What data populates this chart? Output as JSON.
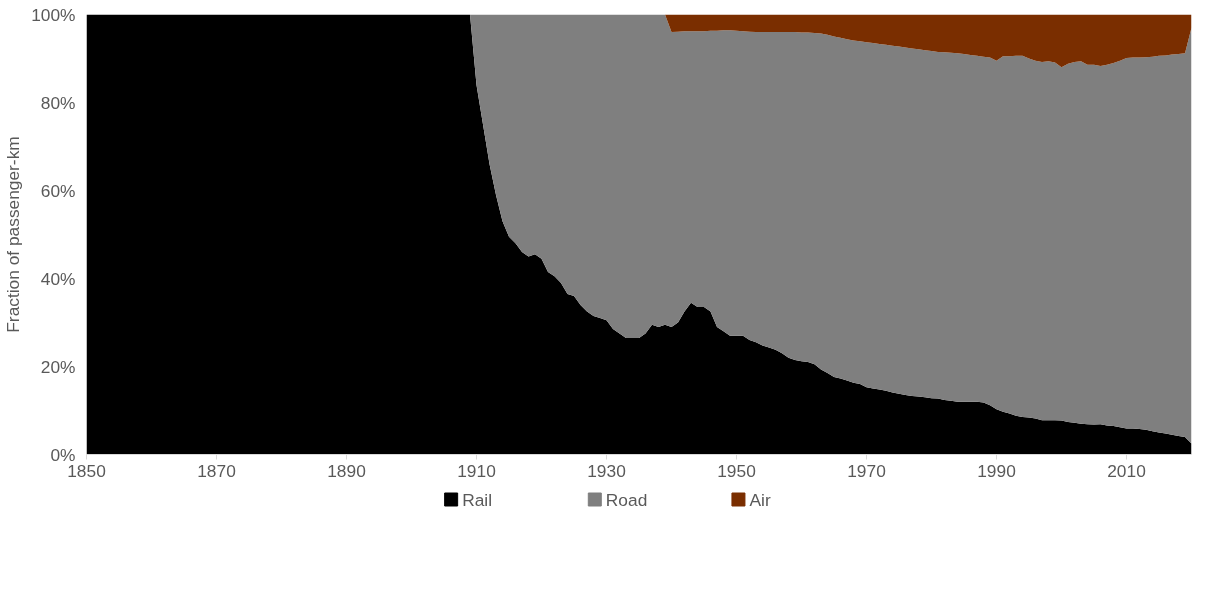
{
  "chart_data": {
    "type": "area",
    "stacked": true,
    "ylabel": "Fraction of passenger-km",
    "x": [
      1850,
      1909,
      1910,
      1911,
      1912,
      1913,
      1914,
      1915,
      1916,
      1917,
      1918,
      1919,
      1920,
      1921,
      1922,
      1923,
      1924,
      1925,
      1926,
      1927,
      1928,
      1929,
      1930,
      1931,
      1932,
      1933,
      1934,
      1935,
      1936,
      1937,
      1938,
      1939,
      1940,
      1941,
      1942,
      1943,
      1944,
      1945,
      1946,
      1947,
      1948,
      1949,
      1950,
      1951,
      1952,
      1953,
      1954,
      1955,
      1956,
      1957,
      1958,
      1959,
      1960,
      1961,
      1962,
      1963,
      1964,
      1965,
      1966,
      1967,
      1968,
      1969,
      1970,
      1971,
      1972,
      1973,
      1974,
      1975,
      1976,
      1977,
      1978,
      1979,
      1980,
      1981,
      1982,
      1983,
      1984,
      1985,
      1986,
      1987,
      1988,
      1989,
      1990,
      1991,
      1992,
      1993,
      1994,
      1995,
      1996,
      1997,
      1998,
      1999,
      2000,
      2001,
      2002,
      2003,
      2004,
      2005,
      2006,
      2007,
      2008,
      2009,
      2010,
      2011,
      2012,
      2013,
      2014,
      2015,
      2016,
      2017,
      2018,
      2019,
      2020
    ],
    "series": [
      {
        "name": "Rail",
        "color": "#000000",
        "values": [
          100,
          100,
          84,
          75,
          66,
          59,
          53,
          49.5,
          48,
          46,
          45,
          45.5,
          44.5,
          41.5,
          40.5,
          39,
          36.5,
          36,
          34,
          32.5,
          31.5,
          31,
          30.5,
          28.5,
          27.5,
          26.5,
          26.5,
          26.5,
          27.5,
          29.5,
          29,
          29.5,
          29,
          30,
          32.5,
          34.5,
          33.5,
          33.5,
          32.5,
          29,
          28,
          27,
          27,
          27,
          26,
          25.5,
          24.8,
          24.3,
          23.8,
          23,
          22,
          21.5,
          21.2,
          21,
          20.5,
          19.3,
          18.5,
          17.6,
          17.3,
          16.8,
          16.3,
          16,
          15.3,
          15,
          14.8,
          14.5,
          14.1,
          13.8,
          13.5,
          13.3,
          13.2,
          13,
          12.8,
          12.7,
          12.4,
          12.2,
          12,
          12,
          12,
          12,
          11.8,
          11.2,
          10.3,
          9.7,
          9.3,
          8.8,
          8.5,
          8.4,
          8.2,
          7.8,
          7.8,
          7.8,
          7.7,
          7.4,
          7.2,
          7.0,
          6.9,
          6.8,
          6.9,
          6.6,
          6.5,
          6.2,
          5.9,
          5.9,
          5.8,
          5.6,
          5.3,
          5,
          4.8,
          4.5,
          4.2,
          4,
          2.5
        ]
      },
      {
        "name": "Road",
        "color": "#7f7f7f",
        "values": [
          0,
          0,
          16,
          25,
          34,
          41,
          47,
          50.5,
          52,
          54,
          55,
          54.5,
          55.5,
          58.5,
          59.5,
          61,
          63.5,
          64,
          66,
          67.5,
          68.5,
          69,
          69.5,
          71.5,
          72.5,
          73.5,
          73.5,
          73.5,
          72.5,
          70.5,
          71,
          70.5,
          67,
          66.1,
          63.7,
          61.7,
          62.7,
          62.7,
          63.8,
          67.3,
          68.4,
          69.4,
          69.3,
          69.2,
          70.1,
          70.5,
          71.2,
          71.7,
          72.2,
          73,
          74,
          74.5,
          74.7,
          74.9,
          75.3,
          76.4,
          76.9,
          77.4,
          77.4,
          77.6,
          77.8,
          77.9,
          78.4,
          78.5,
          78.5,
          78.6,
          78.8,
          78.9,
          79,
          79,
          78.9,
          78.9,
          78.9,
          78.8,
          79,
          79.1,
          79.2,
          79,
          78.8,
          78.6,
          78.6,
          79,
          79.2,
          80.8,
          81.2,
          81.8,
          82.1,
          81.6,
          81.3,
          81.4,
          81.6,
          81.3,
          80.3,
          81.4,
          82,
          82.4,
          81.7,
          81.8,
          81.4,
          82,
          82.5,
          83.3,
          84.2,
          84.3,
          84.4,
          84.7,
          85.1,
          85.6,
          85.9,
          86.4,
          86.8,
          87.2,
          94.5
        ]
      },
      {
        "name": "Air",
        "color": "#7a2e00",
        "values": [
          0,
          0,
          0,
          0,
          0,
          0,
          0,
          0,
          0,
          0,
          0,
          0,
          0,
          0,
          0,
          0,
          0,
          0,
          0,
          0,
          0,
          0,
          0,
          0,
          0,
          0,
          0,
          0,
          0,
          0,
          0,
          0,
          4,
          3.9,
          3.8,
          3.8,
          3.8,
          3.8,
          3.7,
          3.7,
          3.6,
          3.6,
          3.7,
          3.8,
          3.9,
          4,
          4,
          4,
          4,
          4,
          4,
          4,
          4.1,
          4.1,
          4.2,
          4.3,
          4.6,
          5,
          5.3,
          5.6,
          5.9,
          6.1,
          6.3,
          6.5,
          6.7,
          6.9,
          7.1,
          7.3,
          7.5,
          7.7,
          7.9,
          8.1,
          8.3,
          8.5,
          8.6,
          8.7,
          8.8,
          9,
          9.2,
          9.4,
          9.6,
          9.8,
          10.5,
          9.5,
          9.5,
          9.4,
          9.4,
          10,
          10.5,
          10.8,
          10.6,
          10.9,
          12,
          11.2,
          10.8,
          10.6,
          11.4,
          11.4,
          11.7,
          11.4,
          11,
          10.5,
          9.9,
          9.8,
          9.8,
          9.7,
          9.6,
          9.4,
          9.3,
          9.1,
          9,
          8.8,
          3
        ]
      }
    ],
    "xlim": [
      1850,
      2020
    ],
    "xticks": [
      1850,
      1870,
      1890,
      1910,
      1930,
      1950,
      1970,
      1990,
      2010
    ],
    "ylim": [
      0,
      100
    ],
    "yticks": [
      {
        "value": 0,
        "label": "0%"
      },
      {
        "value": 20,
        "label": "20%"
      },
      {
        "value": 40,
        "label": "40%"
      },
      {
        "value": 60,
        "label": "60%"
      },
      {
        "value": 80,
        "label": "80%"
      },
      {
        "value": 100,
        "label": "100%"
      }
    ],
    "grid": false,
    "legend": "bottom"
  }
}
